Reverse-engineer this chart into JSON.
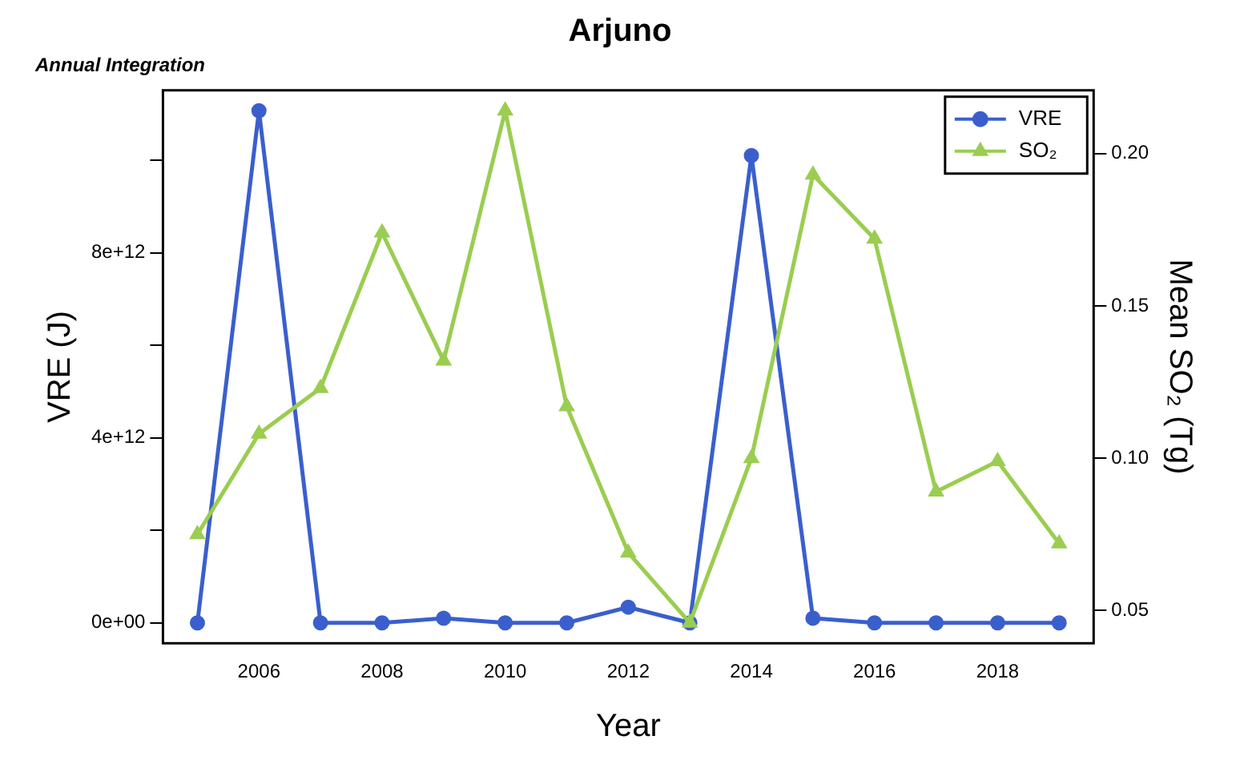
{
  "chart_data": {
    "type": "line",
    "title": "Arjuno",
    "subtitle": "Annual Integration",
    "xlabel": "Year",
    "ylabel": "VRE (J)",
    "y2label": "Mean SO₂ (Tg)",
    "x": [
      2005,
      2006,
      2007,
      2008,
      2009,
      2010,
      2011,
      2012,
      2013,
      2014,
      2015,
      2016,
      2017,
      2018,
      2019
    ],
    "series": [
      {
        "name": "VRE",
        "color": "#3a5fcd",
        "marker": "circle",
        "values": [
          0,
          11070000000000.0,
          0,
          0,
          100000000000.0,
          0,
          0,
          340000000000.0,
          0,
          10100000000000.0,
          100000000000.0,
          0,
          0,
          0,
          0
        ]
      },
      {
        "name": "SO₂",
        "color": "#9acd50",
        "marker": "triangle",
        "axis": "y2",
        "values": [
          0.075,
          0.108,
          0.123,
          0.174,
          0.132,
          0.214,
          0.117,
          0.069,
          0.046,
          0.1,
          0.193,
          0.172,
          0.089,
          0.099,
          0.072
        ]
      }
    ],
    "xlim": [
      2004.44,
      2019.56
    ],
    "xticks": [
      2006,
      2008,
      2010,
      2012,
      2014,
      2016,
      2018
    ],
    "ylim": [
      -440000000000.0,
      11510000000000.0
    ],
    "yticks": [
      {
        "value": 0,
        "label": "0e+00"
      },
      {
        "value": 2000000000000.0,
        "label": null
      },
      {
        "value": 4000000000000.0,
        "label": "4e+12"
      },
      {
        "value": 6000000000000.0,
        "label": null
      },
      {
        "value": 8000000000000.0,
        "label": "8e+12"
      },
      {
        "value": 10000000000000.0,
        "label": null
      }
    ],
    "y2lim": [
      0.0393,
      0.2207
    ],
    "y2ticks": [
      {
        "value": 0.05,
        "label": "0.05"
      },
      {
        "value": 0.1,
        "label": "0.10"
      },
      {
        "value": 0.15,
        "label": "0.15"
      },
      {
        "value": 0.2,
        "label": "0.20"
      }
    ],
    "legend": "top right",
    "grid": false,
    "line_style": "solid"
  }
}
